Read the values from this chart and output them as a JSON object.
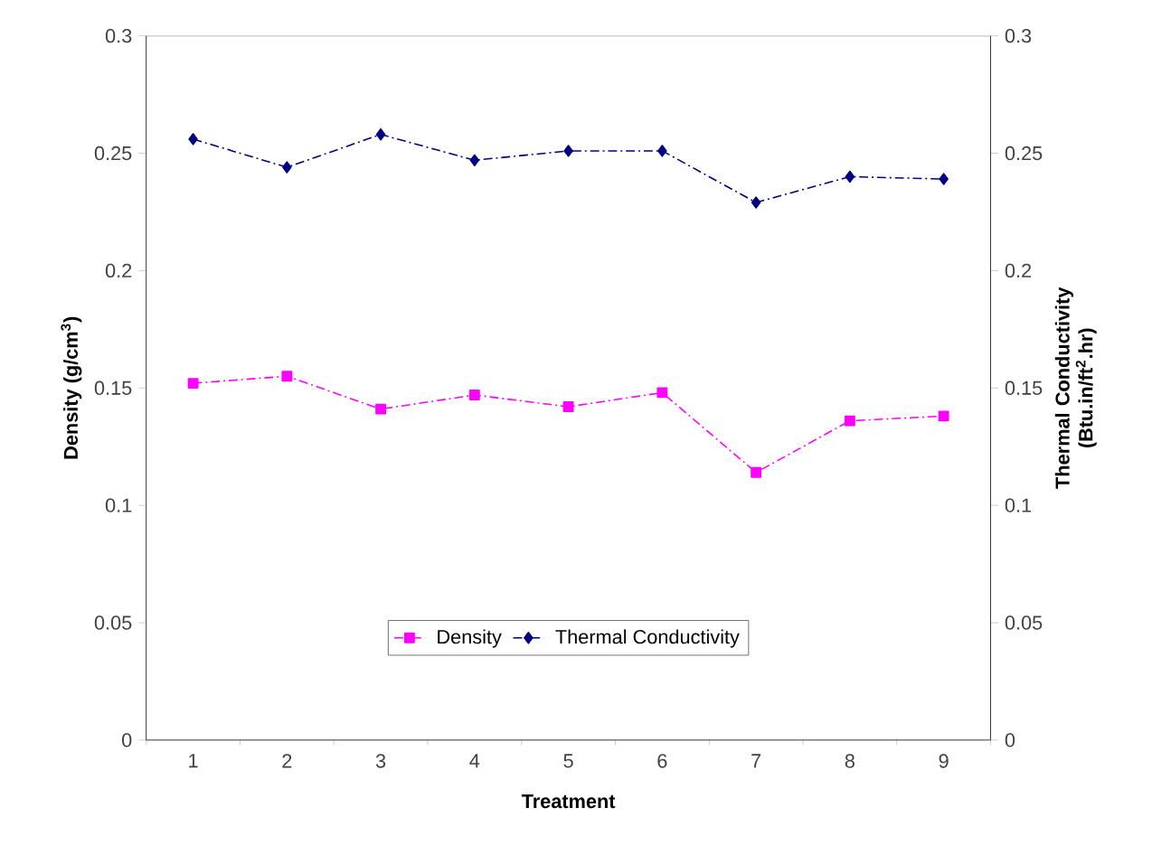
{
  "chart_data": {
    "type": "line",
    "xlabel": "Treatment",
    "ylabel": "Density (g/cm$^{3}$)",
    "y2label": "Thermal Conductivity (Btu.in/ft$^{2}$.hr)",
    "categories": [
      "1",
      "2",
      "3",
      "4",
      "5",
      "6",
      "7",
      "8",
      "9"
    ],
    "series": [
      {
        "name": "Density",
        "color": "#ff00ff",
        "marker": "square",
        "line_style": "dashed",
        "values": [
          0.152,
          0.155,
          0.141,
          0.147,
          0.142,
          0.148,
          0.114,
          0.136,
          0.138
        ]
      },
      {
        "name": "Thermal Conductivity",
        "color": "#000080",
        "marker": "diamond",
        "line_style": "dashed",
        "axis": "y2",
        "values": [
          0.256,
          0.244,
          0.258,
          0.247,
          0.251,
          0.251,
          0.229,
          0.24,
          0.239
        ]
      }
    ],
    "ylim": [
      0,
      0.3
    ],
    "yticks": [
      0,
      0.05,
      0.1,
      0.15,
      0.2,
      0.25,
      0.3
    ],
    "y2lim": [
      0,
      0.3
    ],
    "y2ticks": [
      0,
      0.05,
      0.1,
      0.15,
      0.2,
      0.25,
      0.3
    ],
    "grid": false,
    "legend": "bottom"
  }
}
